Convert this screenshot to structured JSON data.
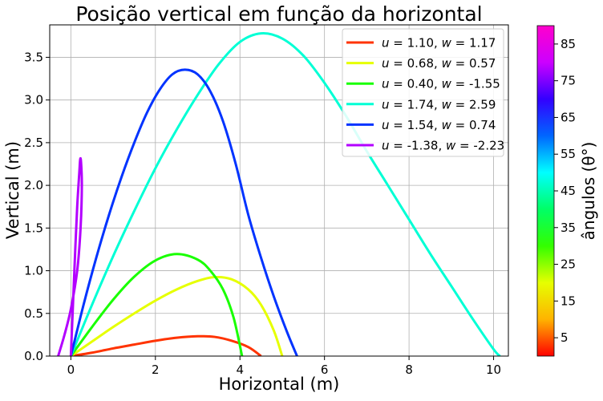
{
  "chart_data": {
    "type": "line",
    "title": "Posição vertical em função da horizontal",
    "xlabel": "Horizontal (m)",
    "ylabel": "Vertical (m)",
    "xlim": [
      -0.5,
      10.35
    ],
    "ylim": [
      0,
      3.88
    ],
    "xticks": [
      0,
      2,
      4,
      6,
      8,
      10
    ],
    "yticks": [
      0.0,
      0.5,
      1.0,
      1.5,
      2.0,
      2.5,
      3.0,
      3.5
    ],
    "grid": true,
    "legend_position": "top-right",
    "series": [
      {
        "name": "u = 1.10, w = 1.17",
        "u": "1.10",
        "w": "1.17",
        "color": "#ff3300",
        "points": [
          [
            0,
            0
          ],
          [
            0.5,
            0.04
          ],
          [
            1.0,
            0.09
          ],
          [
            1.5,
            0.135
          ],
          [
            2.0,
            0.18
          ],
          [
            2.5,
            0.215
          ],
          [
            3.0,
            0.232
          ],
          [
            3.4,
            0.225
          ],
          [
            3.8,
            0.18
          ],
          [
            4.2,
            0.105
          ],
          [
            4.5,
            0.0
          ]
        ]
      },
      {
        "name": "u = 0.68, w = 0.57",
        "u": "0.68",
        "w": "0.57",
        "color": "#e6ff00",
        "points": [
          [
            0,
            0
          ],
          [
            0.5,
            0.17
          ],
          [
            1.0,
            0.34
          ],
          [
            1.5,
            0.5
          ],
          [
            2.0,
            0.65
          ],
          [
            2.5,
            0.78
          ],
          [
            3.0,
            0.88
          ],
          [
            3.4,
            0.925
          ],
          [
            3.8,
            0.9
          ],
          [
            4.2,
            0.78
          ],
          [
            4.5,
            0.6
          ],
          [
            4.8,
            0.3
          ],
          [
            5.0,
            0.0
          ]
        ]
      },
      {
        "name": "u = 0.40, w = -1.55",
        "u": "0.40",
        "w": "-1.55",
        "color": "#19ff00",
        "points": [
          [
            0,
            0
          ],
          [
            0.5,
            0.34
          ],
          [
            1.0,
            0.66
          ],
          [
            1.5,
            0.93
          ],
          [
            2.0,
            1.12
          ],
          [
            2.5,
            1.195
          ],
          [
            3.0,
            1.13
          ],
          [
            3.3,
            1.0
          ],
          [
            3.6,
            0.78
          ],
          [
            3.85,
            0.45
          ],
          [
            4.05,
            0.0
          ]
        ]
      },
      {
        "name": "u = 1.74, w = 2.59",
        "u": "1.74",
        "w": "2.59",
        "color": "#00ffd5",
        "points": [
          [
            0,
            0
          ],
          [
            0.5,
            0.6
          ],
          [
            1.0,
            1.17
          ],
          [
            1.5,
            1.7
          ],
          [
            2.0,
            2.2
          ],
          [
            2.5,
            2.65
          ],
          [
            3.0,
            3.06
          ],
          [
            3.5,
            3.42
          ],
          [
            4.0,
            3.68
          ],
          [
            4.5,
            3.78
          ],
          [
            5.0,
            3.72
          ],
          [
            5.5,
            3.52
          ],
          [
            6.0,
            3.2
          ],
          [
            6.5,
            2.82
          ],
          [
            7.0,
            2.4
          ],
          [
            7.5,
            2.0
          ],
          [
            8.0,
            1.6
          ],
          [
            8.5,
            1.2
          ],
          [
            9.0,
            0.82
          ],
          [
            9.5,
            0.44
          ],
          [
            10.0,
            0.08
          ],
          [
            10.15,
            0.0
          ]
        ]
      },
      {
        "name": "u = 1.54, w = 0.74",
        "u": "1.54",
        "w": "0.74",
        "color": "#0033ff",
        "points": [
          [
            0,
            0
          ],
          [
            0.3,
            0.6
          ],
          [
            0.6,
            1.15
          ],
          [
            0.9,
            1.65
          ],
          [
            1.2,
            2.1
          ],
          [
            1.5,
            2.5
          ],
          [
            1.8,
            2.85
          ],
          [
            2.1,
            3.12
          ],
          [
            2.4,
            3.3
          ],
          [
            2.7,
            3.355
          ],
          [
            3.0,
            3.3
          ],
          [
            3.3,
            3.1
          ],
          [
            3.6,
            2.75
          ],
          [
            3.9,
            2.25
          ],
          [
            4.2,
            1.65
          ],
          [
            4.5,
            1.15
          ],
          [
            4.8,
            0.7
          ],
          [
            5.1,
            0.3
          ],
          [
            5.35,
            0.0
          ]
        ]
      },
      {
        "name": "u = -1.38, w = -2.23",
        "u": "-1.38",
        "w": "-2.23",
        "color": "#b300ff",
        "points": [
          [
            0,
            0
          ],
          [
            0.05,
            0.6
          ],
          [
            0.1,
            1.2
          ],
          [
            0.15,
            1.75
          ],
          [
            0.2,
            2.15
          ],
          [
            0.22,
            2.3
          ],
          [
            0.24,
            2.28
          ],
          [
            0.26,
            2.0
          ],
          [
            0.23,
            1.5
          ],
          [
            0.15,
            1.0
          ],
          [
            0.0,
            0.55
          ],
          [
            -0.15,
            0.25
          ],
          [
            -0.3,
            0.0
          ]
        ]
      }
    ],
    "colorbar": {
      "label": "ângulos (θ°)",
      "range": [
        0,
        90
      ],
      "ticks": [
        5,
        15,
        25,
        35,
        45,
        55,
        65,
        75,
        85
      ],
      "colormap": "hsv",
      "colors": [
        "#ff0000",
        "#ffb300",
        "#e6ff00",
        "#33ff00",
        "#00ff66",
        "#00ffff",
        "#0066ff",
        "#3300ff",
        "#cc00ff",
        "#ff00cc"
      ]
    }
  }
}
